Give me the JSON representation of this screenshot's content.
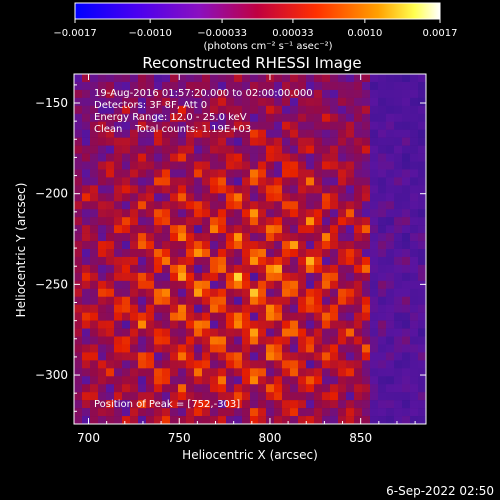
{
  "chart_data": {
    "type": "heatmap",
    "title": "Reconstructed RHESSI Image",
    "xlabel": "Heliocentric X (arcsec)",
    "ylabel": "Heliocentric Y (arcsec)",
    "xlim": [
      692,
      886
    ],
    "ylim": [
      -327,
      -134
    ],
    "x_ticks": [
      700,
      750,
      800,
      850
    ],
    "x_tick_labels": [
      "700",
      "750",
      "800",
      "850"
    ],
    "y_ticks": [
      -150,
      -200,
      -250,
      -300
    ],
    "y_tick_labels": [
      "−150",
      "−200",
      "−250",
      "−300"
    ],
    "colorbar": {
      "range": [
        -0.0017,
        0.0017
      ],
      "ticks": [
        -0.0017,
        -0.001,
        -0.00033,
        0.00033,
        0.001,
        0.0017
      ],
      "tick_labels": [
        "−0.0017",
        "−0.0010",
        "−0.00033",
        "0.00033",
        "0.0010",
        "0.0017"
      ],
      "unit_label": "(photons cm⁻² s⁻¹ asec⁻²)",
      "colors": [
        "#0000ff",
        "#7a00e0",
        "#b00060",
        "#ff2000",
        "#ff9000",
        "#ffff60",
        "#ffffff"
      ]
    },
    "info_lines": [
      "19-Aug-2016 01:57:20.000 to 02:00:00.000",
      "Detectors: 3F 8F, Att 0",
      "Energy Range: 12.0 - 25.0 keV",
      "Clean    Total counts: 1.19E+03"
    ],
    "peak_label": "Position of Peak = [752,-303]",
    "peak": [
      752,
      -303
    ]
  },
  "footer": {
    "date": "6-Sep-2022 02:50"
  }
}
